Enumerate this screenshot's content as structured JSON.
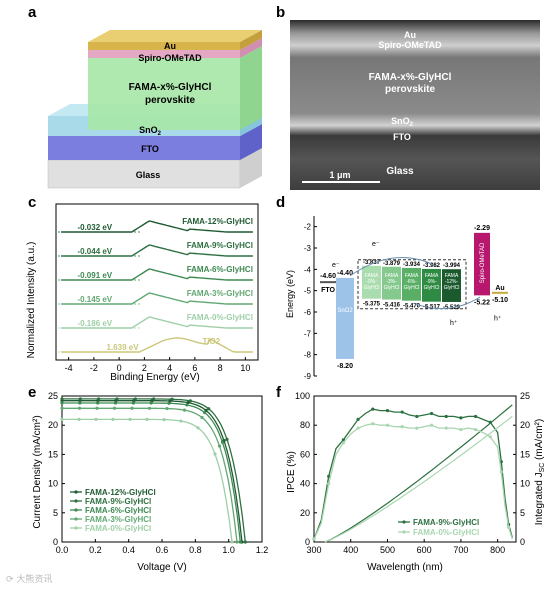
{
  "panels": {
    "a": {
      "label": "a",
      "layers": [
        "Au",
        "Spiro-OMeTAD",
        "FAMA-x%-GlyHCl perovskite",
        "SnO2",
        "FTO",
        "Glass"
      ],
      "colors": {
        "au": "#d8b54a",
        "spiro": "#e4a8c4",
        "perov": "#a6e7a6",
        "sno2": "#9fd6e8",
        "fto": "#7b7ddf",
        "glass": "#e0e0e0"
      }
    },
    "b": {
      "label": "b",
      "layers": [
        "Au",
        "Spiro-OMeTAD",
        "FAMA-x%-GlyHCl",
        "perovskite",
        "SnO2",
        "FTO",
        "Glass"
      ],
      "scalebar": "1 μm"
    },
    "c": {
      "label": "c"
    },
    "d": {
      "label": "d"
    },
    "e": {
      "label": "e"
    },
    "f": {
      "label": "f"
    }
  },
  "chart_data": [
    {
      "type": "line",
      "panel": "c",
      "xlabel": "Binding Energy (eV)",
      "ylabel": "Normalized Intensity (a.u.)",
      "xlim": [
        -5,
        11
      ],
      "xticks": [
        -4,
        -2,
        0,
        2,
        4,
        6,
        8,
        10
      ],
      "series": [
        {
          "name": "FAMA-12%-GlyHCl",
          "value": "-0.032 eV",
          "color": "#1e5a32"
        },
        {
          "name": "FAMA-9%-GlyHCl",
          "value": "-0.044 eV",
          "color": "#2d7040"
        },
        {
          "name": "FAMA-6%-GlyHCl",
          "value": "-0.091 eV",
          "color": "#3e8a52"
        },
        {
          "name": "FAMA-3%-GlyHCl",
          "value": "-0.145 eV",
          "color": "#62a873"
        },
        {
          "name": "FAMA-0%-GlyHCl",
          "value": "-0.186 eV",
          "color": "#9fcfa7"
        },
        {
          "name": "TiO2",
          "value": "1.639 eV",
          "color": "#cbc77a"
        }
      ]
    },
    {
      "type": "diagram",
      "panel": "d",
      "ylabel": "Energy (eV)",
      "ylim": [
        -9,
        -1.5
      ],
      "yticks": [
        -2,
        -3,
        -4,
        -5,
        -6,
        -7,
        -8,
        -9
      ],
      "levels": {
        "FTO": {
          "label": "FTO",
          "value": -4.6,
          "value_label": "-4.60"
        },
        "SnO2": {
          "label": "SnO2",
          "cb": -4.4,
          "vb": -8.2,
          "cb_label": "-4.40",
          "vb_label": "-8.20"
        },
        "perov": [
          {
            "name": "FAMA -0%- GlyHCl",
            "cb": -3.837,
            "vb": -5.375,
            "cb_label": "-3.837",
            "vb_label": "-5.375",
            "color": "#a9dcae"
          },
          {
            "name": "FAMA -3%- GlyHCl",
            "cb": -3.879,
            "vb": -5.416,
            "cb_label": "-3.879",
            "vb_label": "-5.416",
            "color": "#86c98f"
          },
          {
            "name": "FAMA -6%- GlyHCl",
            "cb": -3.934,
            "vb": -5.47,
            "cb_label": "-3.934",
            "vb_label": "-5.470",
            "color": "#5aaf67"
          },
          {
            "name": "FAMA -9%- GlyHCl",
            "cb": -3.982,
            "vb": -5.517,
            "cb_label": "-3.982",
            "vb_label": "-5.517",
            "color": "#2f8a44"
          },
          {
            "name": "FAMA -12%- GlyHCl",
            "cb": -3.994,
            "vb": -5.529,
            "cb_label": "-3.994",
            "vb_label": "-5.529",
            "color": "#1a5a2c"
          }
        ],
        "Spiro": {
          "label": "Spiro-OMeTAD",
          "lumo": -2.29,
          "homo": -5.22,
          "lumo_label": "-2.29",
          "homo_label": "-5.22"
        },
        "Au": {
          "label": "Au",
          "value": -5.1,
          "value_label": "-5.10"
        }
      },
      "carriers": {
        "electron": "e⁻",
        "hole": "h⁺"
      }
    },
    {
      "type": "line",
      "panel": "e",
      "xlabel": "Voltage (V)",
      "ylabel": "Current Density (mA/cm²)",
      "xlim": [
        0,
        1.2
      ],
      "ylim": [
        0,
        25
      ],
      "xticks": [
        0.0,
        0.2,
        0.4,
        0.6,
        0.8,
        1.0,
        1.2
      ],
      "yticks": [
        0,
        5,
        10,
        15,
        20,
        25
      ],
      "series": [
        {
          "name": "FAMA-12%-GlyHCl",
          "jsc": 24.2,
          "voc": 1.08,
          "color": "#1e5a32"
        },
        {
          "name": "FAMA-9%-GlyHCl",
          "jsc": 24.5,
          "voc": 1.1,
          "color": "#2d7040"
        },
        {
          "name": "FAMA-6%-GlyHCl",
          "jsc": 23.8,
          "voc": 1.07,
          "color": "#3e8a52"
        },
        {
          "name": "FAMA-3%-GlyHCl",
          "jsc": 22.9,
          "voc": 1.05,
          "color": "#62a873"
        },
        {
          "name": "FAMA-0%-GlyHCl",
          "jsc": 21.0,
          "voc": 1.02,
          "color": "#9fcfa7"
        }
      ]
    },
    {
      "type": "line",
      "panel": "f",
      "xlabel": "Wavelength (nm)",
      "ylabel": "IPCE (%)",
      "y2label": "Integrated J",
      "y2sub": "SC",
      "y2unit": " (mA/cm²)",
      "xlim": [
        300,
        850
      ],
      "ylim": [
        0,
        100
      ],
      "y2lim": [
        0,
        25
      ],
      "xticks": [
        300,
        400,
        500,
        600,
        700,
        800
      ],
      "yticks": [
        0,
        20,
        40,
        60,
        80,
        100
      ],
      "y2ticks": [
        0,
        5,
        10,
        15,
        20,
        25
      ],
      "series": [
        {
          "name": "FAMA-9%-GlyHCl",
          "color": "#2d7040",
          "x": [
            300,
            320,
            340,
            360,
            380,
            400,
            420,
            440,
            460,
            480,
            500,
            520,
            540,
            560,
            580,
            600,
            620,
            640,
            660,
            680,
            700,
            720,
            740,
            760,
            780,
            800,
            810,
            820,
            830,
            840
          ],
          "y": [
            2,
            15,
            45,
            64,
            70,
            77,
            84,
            88,
            91,
            90,
            90,
            89,
            89,
            87,
            86,
            87,
            88,
            86,
            86,
            86,
            85,
            86,
            86,
            84,
            82,
            75,
            55,
            30,
            12,
            3
          ],
          "integrated_end": 23.5
        },
        {
          "name": "FAMA-0%-GlyHCl",
          "color": "#a9d6b0",
          "x": [
            300,
            320,
            340,
            360,
            380,
            400,
            420,
            440,
            460,
            480,
            500,
            520,
            540,
            560,
            580,
            600,
            620,
            640,
            660,
            680,
            700,
            720,
            740,
            760,
            780,
            800,
            810,
            820,
            830,
            840
          ],
          "y": [
            2,
            13,
            40,
            60,
            68,
            74,
            78,
            80,
            81,
            80,
            80,
            79,
            79,
            78,
            78,
            79,
            80,
            78,
            78,
            78,
            77,
            78,
            77,
            75,
            72,
            65,
            48,
            25,
            10,
            2
          ],
          "integrated_end": 21.5
        }
      ]
    }
  ]
}
